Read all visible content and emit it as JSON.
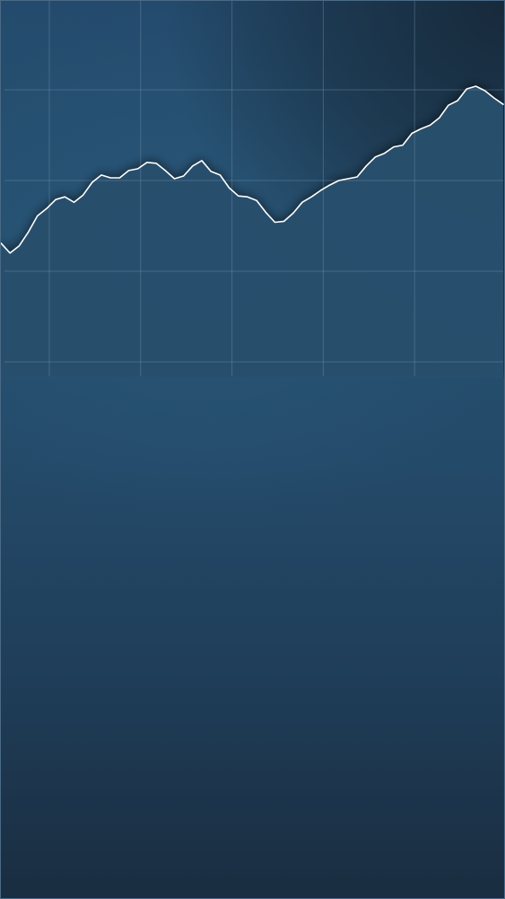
{
  "chart_data": {
    "type": "area",
    "title": "",
    "xlabel": "",
    "ylabel": "",
    "xlim": [
      0,
      55
    ],
    "ylim": [
      0,
      4
    ],
    "grid": true,
    "x_gridlines": [
      5.3,
      15.3,
      25.3,
      35.3,
      45.3
    ],
    "y_gridlines": [
      0,
      1,
      2,
      3
    ],
    "x": [
      0,
      1,
      2,
      3,
      4,
      5,
      6,
      7,
      8,
      9,
      10,
      11,
      12,
      13,
      14,
      15,
      16,
      17,
      18,
      19,
      20,
      21,
      22,
      23,
      24,
      25,
      26,
      27,
      28,
      29,
      30,
      31,
      32,
      33,
      34,
      35,
      36,
      37,
      38,
      39,
      40,
      41,
      42,
      43,
      44,
      45,
      46,
      47,
      48,
      49,
      50,
      51,
      52,
      53,
      54,
      55
    ],
    "series": [
      {
        "values": [
          1.31,
          1.2,
          1.28,
          1.43,
          1.61,
          1.69,
          1.79,
          1.82,
          1.76,
          1.84,
          1.98,
          2.06,
          2.03,
          2.03,
          2.11,
          2.13,
          2.2,
          2.19,
          2.11,
          2.02,
          2.05,
          2.16,
          2.22,
          2.1,
          2.06,
          1.92,
          1.83,
          1.82,
          1.78,
          1.65,
          1.54,
          1.55,
          1.64,
          1.76,
          1.82,
          1.89,
          1.95,
          2.0,
          2.02,
          2.04,
          2.16,
          2.26,
          2.3,
          2.37,
          2.39,
          2.52,
          2.57,
          2.61,
          2.69,
          2.83,
          2.88,
          3.01,
          3.04,
          2.99,
          2.91,
          2.84
        ]
      }
    ],
    "colors": {
      "line": "#ffffff",
      "area_top": "#27506f",
      "gridline": "#6e8ca6",
      "bg_top_right": "#172a3b"
    }
  }
}
